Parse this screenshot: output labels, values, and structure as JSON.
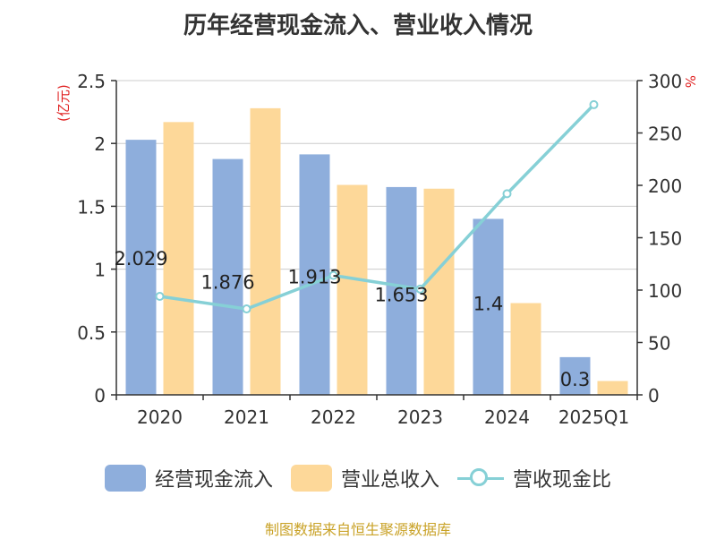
{
  "chart_data": {
    "type": "bar",
    "title": "历年经营现金流入、营业收入情况",
    "categories": [
      "2020",
      "2021",
      "2022",
      "2023",
      "2024",
      "2025Q1"
    ],
    "y_left": {
      "label": "(亿元)",
      "ylim": [
        0,
        2.5
      ],
      "ticks": [
        "0",
        "0.5",
        "1",
        "1.5",
        "2",
        "2.5"
      ]
    },
    "y_right": {
      "label": "%",
      "ylim": [
        0,
        300
      ],
      "ticks": [
        "0",
        "50",
        "100",
        "150",
        "200",
        "250",
        "300"
      ]
    },
    "series": [
      {
        "name": "经营现金流入",
        "type": "bar",
        "axis": "left",
        "color": "#8eaedc",
        "values": [
          2.029,
          1.876,
          1.913,
          1.653,
          1.4,
          0.3
        ],
        "labels": [
          "2.029",
          "1.876",
          "1.913",
          "1.653",
          "1.4",
          "0.3"
        ]
      },
      {
        "name": "营业总收入",
        "type": "bar",
        "axis": "left",
        "color": "#fdd899",
        "values": [
          2.17,
          2.28,
          1.67,
          1.64,
          0.73,
          0.11
        ]
      },
      {
        "name": "营收现金比",
        "type": "line",
        "axis": "right",
        "color": "#86d0d6",
        "values": [
          94,
          82,
          114,
          101,
          192,
          277
        ]
      }
    ],
    "grid": true,
    "legend": "bottom"
  },
  "source_text": "制图数据来自恒生聚源数据库"
}
